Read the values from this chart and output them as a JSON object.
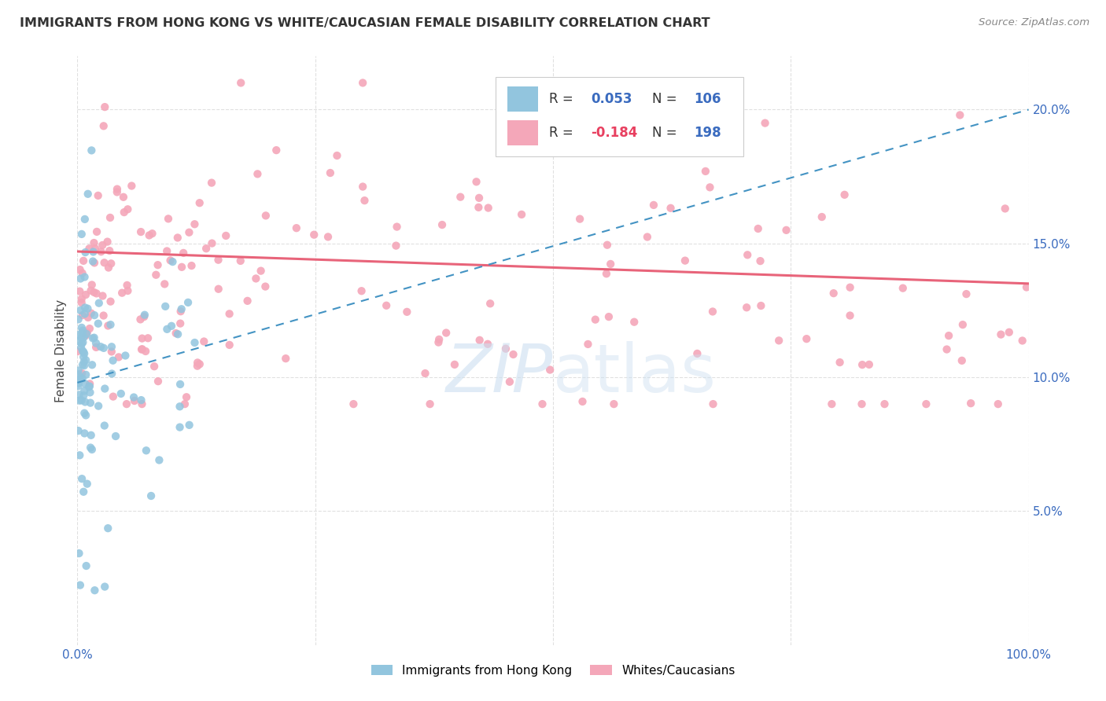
{
  "title": "IMMIGRANTS FROM HONG KONG VS WHITE/CAUCASIAN FEMALE DISABILITY CORRELATION CHART",
  "source": "Source: ZipAtlas.com",
  "ylabel": "Female Disability",
  "right_yticks": [
    "5.0%",
    "10.0%",
    "15.0%",
    "20.0%"
  ],
  "right_ytick_vals": [
    0.05,
    0.1,
    0.15,
    0.2
  ],
  "legend_labels_bottom": [
    "Immigrants from Hong Kong",
    "Whites/Caucasians"
  ],
  "hk_color": "#92c5de",
  "white_color": "#f4a7b9",
  "hk_line_color": "#4393c3",
  "white_line_color": "#e8647a",
  "R_hk": 0.053,
  "R_white": -0.184,
  "N_hk": 106,
  "N_white": 198,
  "xlim": [
    0.0,
    1.0
  ],
  "ylim": [
    0.0,
    0.22
  ],
  "background_color": "#ffffff",
  "grid_color": "#e0e0e0",
  "hk_line_start_y": 0.098,
  "hk_line_end_y": 0.2,
  "white_line_start_y": 0.147,
  "white_line_end_y": 0.135
}
